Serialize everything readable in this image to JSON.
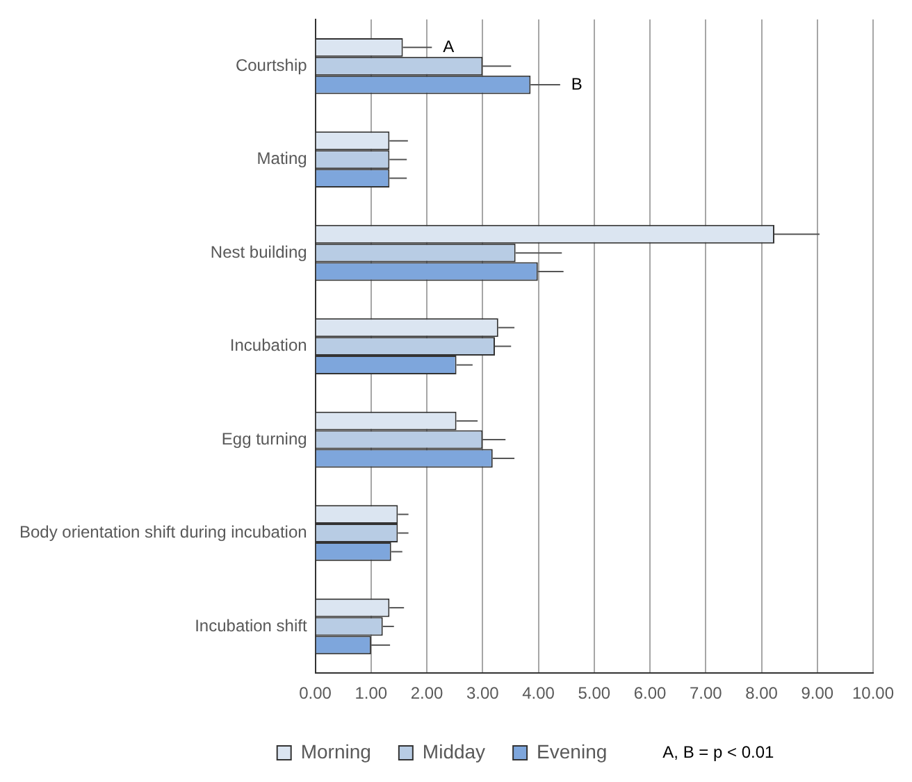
{
  "chart_data": {
    "type": "bar",
    "orientation": "horizontal",
    "categories": [
      "Courtship",
      "Mating",
      "Nest building",
      "Incubation",
      "Egg turning",
      "Body orientation shift during incubation",
      "Incubation shift"
    ],
    "series": [
      {
        "name": "Morning",
        "color": "#dbe5f1",
        "values": [
          1.57,
          1.33,
          8.23,
          3.28,
          2.53,
          1.48,
          1.33
        ],
        "errors": [
          [
            1.57,
            2.09
          ],
          [
            1.33,
            1.66
          ],
          [
            8.23,
            9.04
          ],
          [
            3.28,
            3.57
          ],
          [
            2.53,
            2.91
          ],
          [
            1.48,
            1.67
          ],
          [
            1.33,
            1.59
          ]
        ]
      },
      {
        "name": "Midday",
        "color": "#b8cce4",
        "values": [
          3.0,
          1.33,
          3.59,
          3.22,
          3.0,
          1.48,
          1.21
        ],
        "errors": [
          [
            3.0,
            3.51
          ],
          [
            1.33,
            1.64
          ],
          [
            3.59,
            4.42
          ],
          [
            3.22,
            3.51
          ],
          [
            3.0,
            3.41
          ],
          [
            1.48,
            1.67
          ],
          [
            1.21,
            1.41
          ]
        ]
      },
      {
        "name": "Evening",
        "color": "#7ea6dc",
        "values": [
          3.86,
          1.33,
          3.99,
          2.53,
          3.18,
          1.36,
          1.0
        ],
        "errors": [
          [
            3.86,
            4.39
          ],
          [
            1.33,
            1.64
          ],
          [
            3.99,
            4.45
          ],
          [
            2.53,
            2.82
          ],
          [
            3.18,
            3.57
          ],
          [
            1.36,
            1.56
          ],
          [
            1.0,
            1.34
          ]
        ]
      }
    ],
    "xlim": [
      0,
      10
    ],
    "xticks": [
      {
        "value": 0,
        "label": "0.00"
      },
      {
        "value": 1,
        "label": "1.00"
      },
      {
        "value": 2,
        "label": "2.00"
      },
      {
        "value": 3,
        "label": "3.00"
      },
      {
        "value": 4,
        "label": "4.00"
      },
      {
        "value": 5,
        "label": "5.00"
      },
      {
        "value": 6,
        "label": "6.00"
      },
      {
        "value": 7,
        "label": "7.00"
      },
      {
        "value": 8,
        "label": "8.00"
      },
      {
        "value": 9,
        "label": "9.00"
      },
      {
        "value": 10,
        "label": "10.00"
      }
    ],
    "grid": "x",
    "legend": "bottom",
    "annotations": [
      "A",
      "B",
      "A, B = p < 0.01"
    ]
  }
}
